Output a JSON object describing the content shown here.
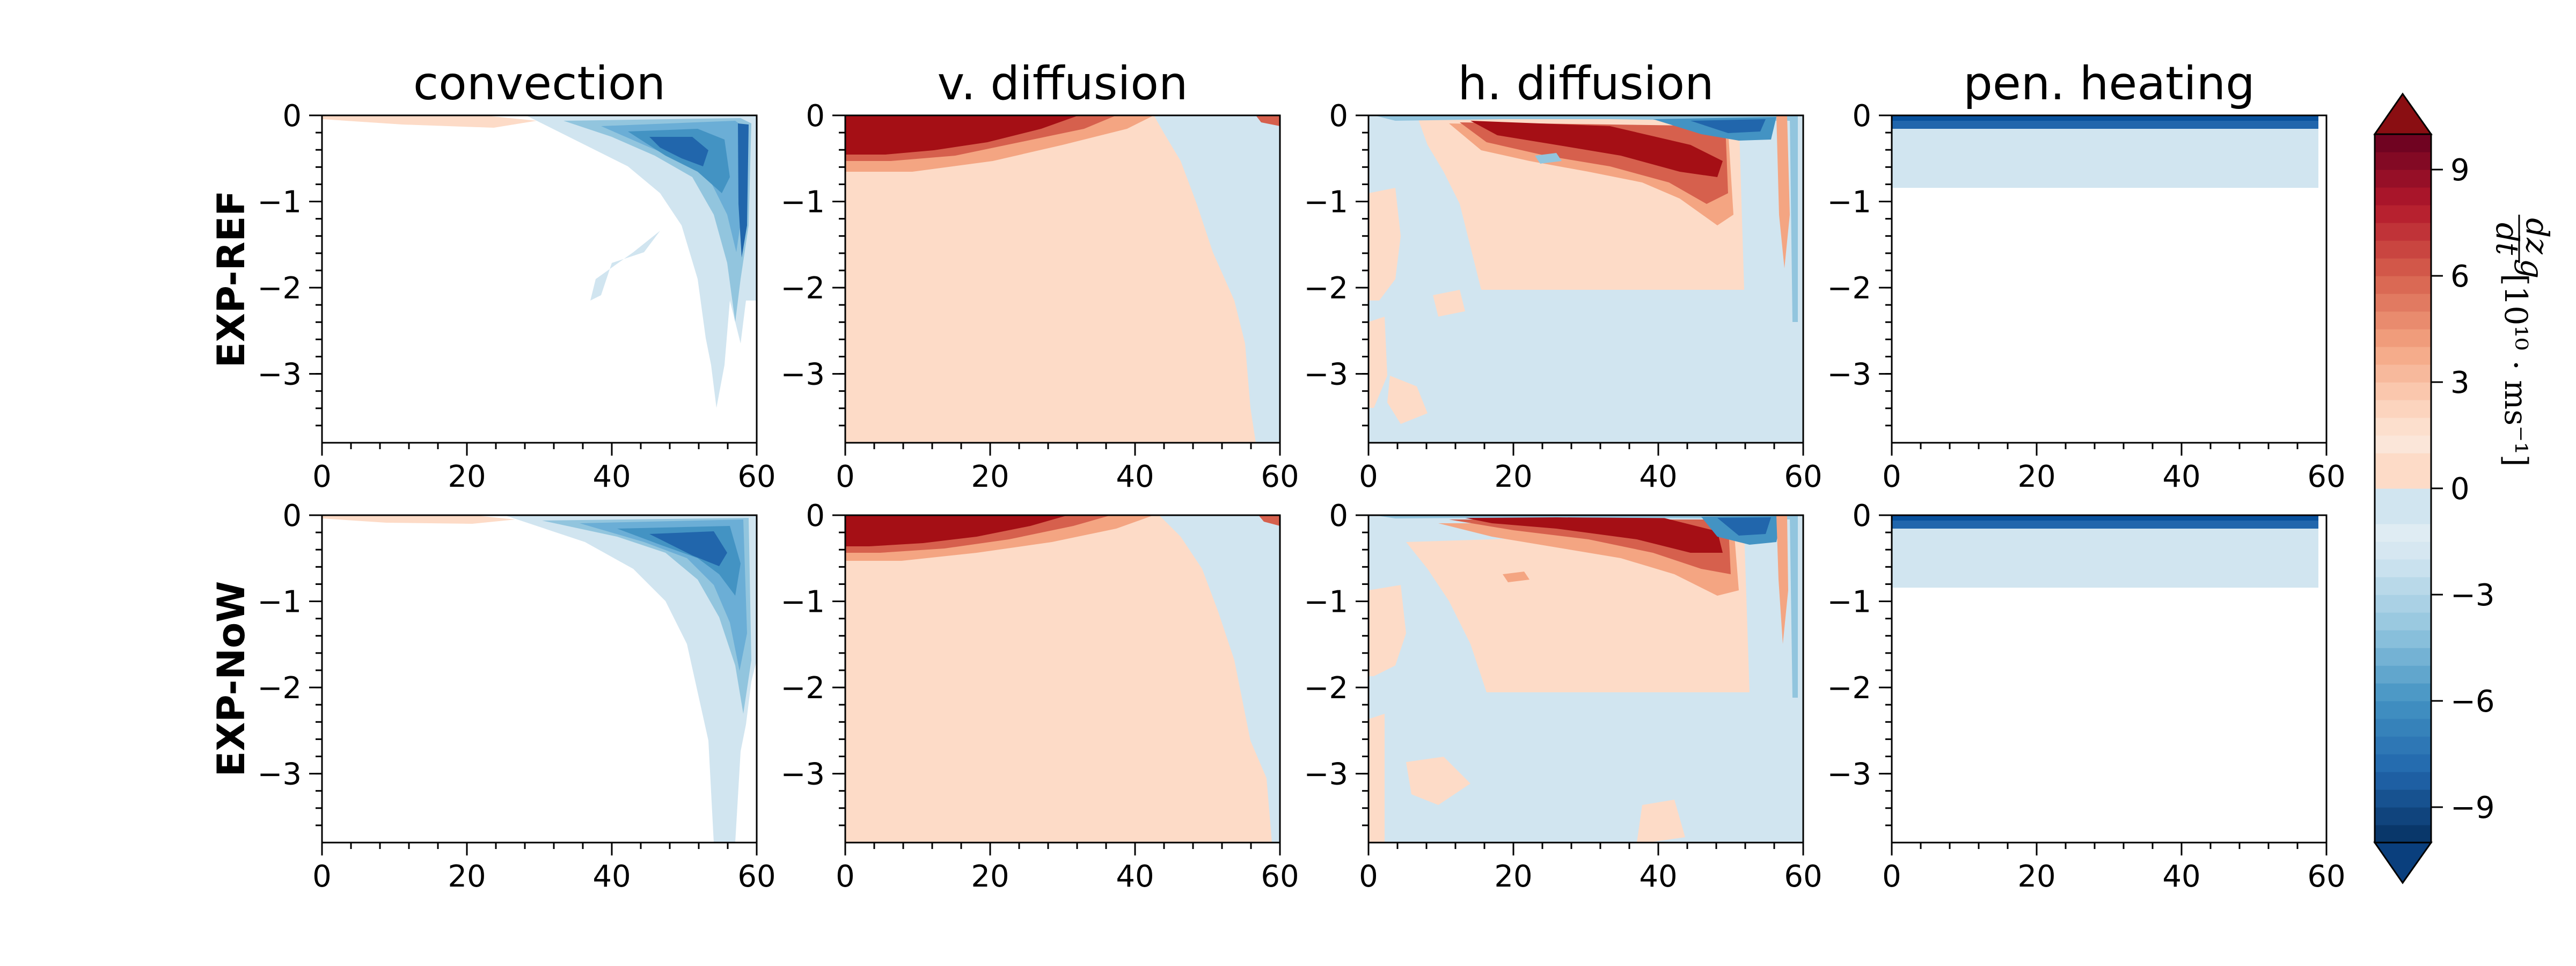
{
  "chart_data": {
    "type": "heatmap",
    "subtype": "filled-contour small multiples (2 rows x 4 columns)",
    "columns": [
      "convection",
      "v. diffusion",
      "h. diffusion",
      "pen. heating"
    ],
    "rows": [
      "EXP-REF",
      "EXP-NoW"
    ],
    "xlim": [
      0,
      60
    ],
    "ylim": [
      -3.8,
      0
    ],
    "xticks": [
      "0",
      "20",
      "40",
      "60"
    ],
    "yticks": [
      "0",
      "-1",
      "-2",
      "-3"
    ],
    "colorbar": {
      "label": "dz_g/dt [10^10 · m s^-1]",
      "label_lines": {
        "frac_num": "dz",
        "frac_num_sub": "g",
        "frac_den": "dt",
        "bracket": "[10¹⁰ · ms⁻¹]"
      },
      "vmin": -10,
      "vmax": 10,
      "ticks": [
        "9",
        "6",
        "3",
        "0",
        "−3",
        "−6",
        "−9"
      ],
      "extend": "both",
      "colormap": "RdBu_r",
      "colors": {
        "deep_red": "#a50f15",
        "red": "#d6604d",
        "orange": "#f4a582",
        "peach": "#fddbc7",
        "pale_blue": "#d1e5f0",
        "light_blue": "#92c5de",
        "mid_blue": "#4393c3",
        "deep_blue": "#08519c"
      }
    },
    "panels": [
      {
        "row": "EXP-REF",
        "column": "convection",
        "pattern": "negative (blue) band deepening toward x≈40-60, strongest near x≈45-55 at depth 0 to -1, tongue to about -3.3 near x≈55"
      },
      {
        "row": "EXP-REF",
        "column": "v. diffusion",
        "pattern": "strong positive (deep red) layer 0 to -0.5 for x≈0-35; weak positive elsewhere; weak negative near x≈45-60"
      },
      {
        "row": "EXP-REF",
        "column": "h. diffusion",
        "pattern": "strong positive near surface x≈10-50, weak positive mid-depth, negative surface strip near x≈50-58, weak negative at depth"
      },
      {
        "row": "EXP-REF",
        "column": "pen. heating",
        "pattern": "thin strong negative surface layer 0 to -0.15; weak negative to about -0.85"
      },
      {
        "row": "EXP-NoW",
        "column": "convection",
        "pattern": "negative band x≈30-60, strongest near x≈45-55, tongue to bottom near x≈52"
      },
      {
        "row": "EXP-NoW",
        "column": "v. diffusion",
        "pattern": "strong positive layer 0 to -0.5 for x≈0-30; weak positive elsewhere; weak negative near x≈45-60"
      },
      {
        "row": "EXP-NoW",
        "column": "h. diffusion",
        "pattern": "thin positive surface layer x≈10-50, negative surface near x≈50-58, weak positive mid-depth, weak negative below -2"
      },
      {
        "row": "EXP-NoW",
        "column": "pen. heating",
        "pattern": "thin strong negative surface layer 0 to -0.15; weak negative to about -0.85"
      }
    ]
  }
}
